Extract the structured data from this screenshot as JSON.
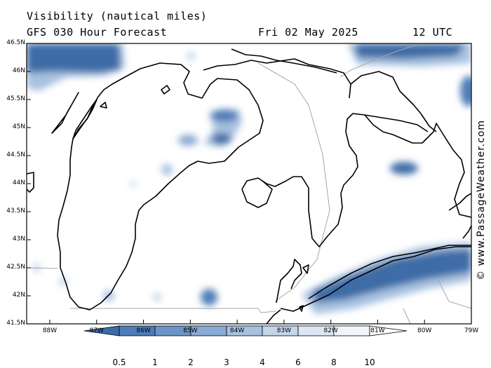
{
  "header": {
    "title": "Visibility (nautical miles)",
    "model": "GFS 030 Hour Forecast",
    "date": "Fri 02 May 2025",
    "time": "12 UTC"
  },
  "credit": "© www.PassageWeather.com",
  "map": {
    "lat_labels": [
      "46.5N",
      "46N",
      "45.5N",
      "45N",
      "44.5N",
      "44N",
      "43.5N",
      "43N",
      "42.5N",
      "42N",
      "41.5N"
    ],
    "lon_labels": [
      "88W",
      "87W",
      "86W",
      "85W",
      "84W",
      "83W",
      "82W",
      "81W",
      "80W",
      "79W"
    ],
    "water_color": "#ffffff",
    "coast_color": "#000000",
    "border_color": "#a6a6a6"
  },
  "legend": {
    "levels": [
      "0.5",
      "1",
      "2",
      "3",
      "4",
      "6",
      "8",
      "10"
    ],
    "colors": [
      "#3c6ca6",
      "#4d7db8",
      "#6b94c6",
      "#8aabd3",
      "#a7c1df",
      "#c4d6ea",
      "#dde7f3",
      "#f2f6fb",
      "#ffffff"
    ]
  }
}
